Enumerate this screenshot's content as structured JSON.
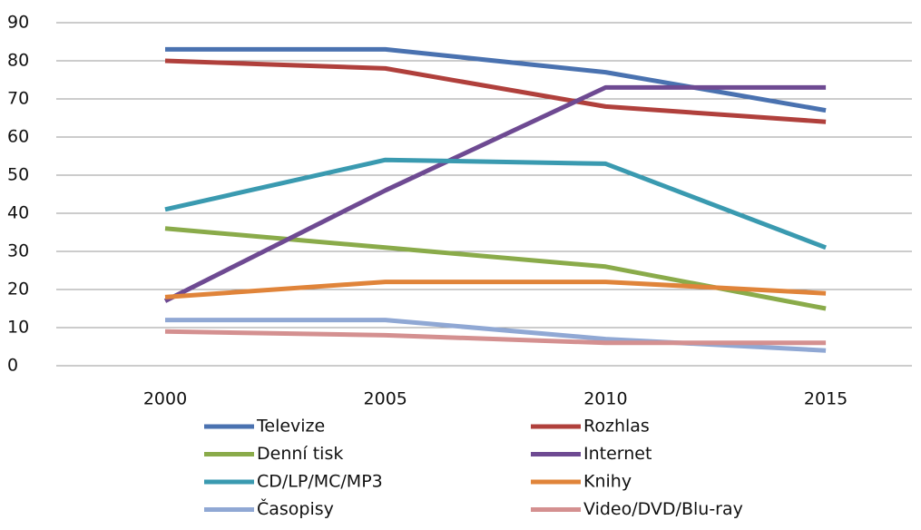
{
  "chart_data": {
    "type": "line",
    "categories": [
      "2000",
      "2005",
      "2010",
      "2015"
    ],
    "series": [
      {
        "name": "Televize",
        "color": "#4a72b0",
        "values": [
          83,
          83,
          77,
          67
        ]
      },
      {
        "name": "Rozhlas",
        "color": "#b0403c",
        "values": [
          80,
          78,
          68,
          64
        ]
      },
      {
        "name": "Denní tisk",
        "color": "#8aab4a",
        "values": [
          36,
          31,
          26,
          15
        ]
      },
      {
        "name": "Internet",
        "color": "#6e4a92",
        "values": [
          17,
          46,
          73,
          73
        ]
      },
      {
        "name": "CD/LP/MC/MP3",
        "color": "#3a9ab0",
        "values": [
          41,
          54,
          53,
          31
        ]
      },
      {
        "name": "Knihy",
        "color": "#e0843a",
        "values": [
          18,
          22,
          22,
          19
        ]
      },
      {
        "name": "Časopisy",
        "color": "#90a8d4",
        "values": [
          12,
          12,
          7,
          4
        ]
      },
      {
        "name": "Video/DVD/Blu-ray",
        "color": "#d49090",
        "values": [
          9,
          8,
          6,
          6
        ]
      }
    ],
    "ylim": [
      0,
      90
    ],
    "yticks": [
      0,
      10,
      20,
      30,
      40,
      50,
      60,
      70,
      80,
      90
    ],
    "grid": true,
    "legend": "bottom"
  }
}
